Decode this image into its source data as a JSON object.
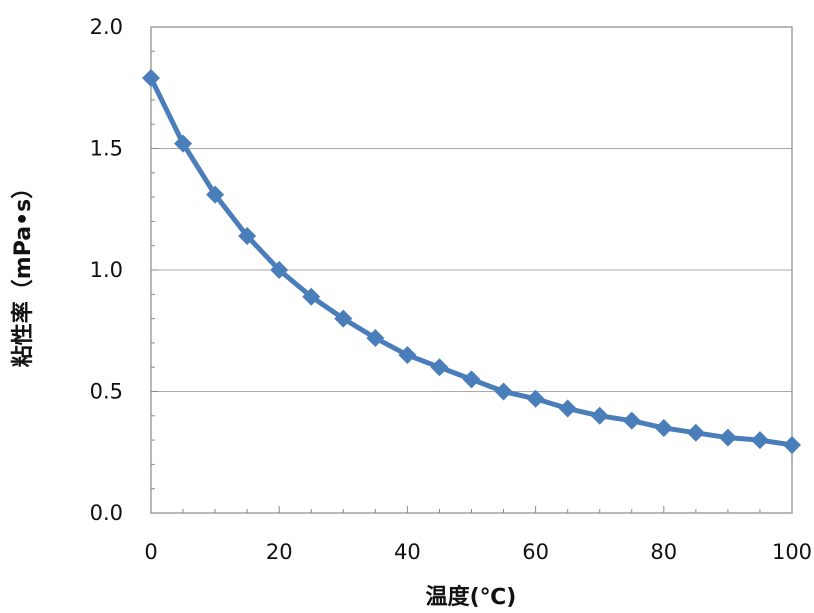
{
  "chart_data": {
    "type": "line",
    "title": "",
    "xlabel": "温度(℃)",
    "ylabel": "粘性率（mPa•s）",
    "xlim": [
      0,
      100
    ],
    "ylim": [
      0,
      2.0
    ],
    "x_ticks": [
      "0",
      "20",
      "40",
      "60",
      "80",
      "100"
    ],
    "y_ticks": [
      "0.0",
      "0.5",
      "1.0",
      "1.5",
      "2.0"
    ],
    "grid": "horizontal major gridlines",
    "legend": "none",
    "series_color": "#4a7ebb",
    "marker": "diamond",
    "series": [
      {
        "x": [
          0,
          5,
          10,
          15,
          20,
          25,
          30,
          35,
          40,
          45,
          50,
          55,
          60,
          65,
          70,
          75,
          80,
          85,
          90,
          95,
          100
        ],
        "values": [
          1.79,
          1.52,
          1.31,
          1.14,
          1.0,
          0.89,
          0.8,
          0.72,
          0.65,
          0.6,
          0.55,
          0.5,
          0.47,
          0.43,
          0.4,
          0.38,
          0.35,
          0.33,
          0.31,
          0.3,
          0.28
        ]
      }
    ]
  }
}
